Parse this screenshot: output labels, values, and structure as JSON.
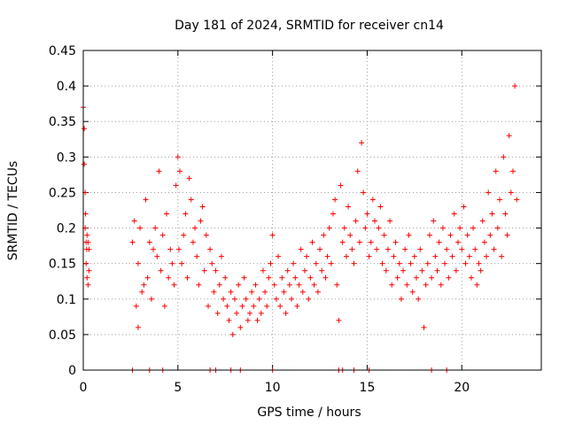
{
  "chart_data": {
    "type": "scatter",
    "title": "Day 181 of 2024, SRMTID for receiver cn14",
    "xlabel": "GPS time / hours",
    "ylabel": "SRMTID / TECUs",
    "xlim": [
      0,
      24.2
    ],
    "ylim": [
      0,
      0.45
    ],
    "xticks": [
      0,
      5,
      10,
      15,
      20
    ],
    "xtick_labels": [
      "0",
      "5",
      "10",
      "15",
      "20"
    ],
    "yticks": [
      0,
      0.05,
      0.1,
      0.15,
      0.2,
      0.25,
      0.3,
      0.35,
      0.4,
      0.45
    ],
    "ytick_labels": [
      "0",
      "0.05",
      "0.1",
      "0.15",
      "0.2",
      "0.25",
      "0.3",
      "0.35",
      "0.4",
      "0.45"
    ],
    "grid": true,
    "marker": "+",
    "color": "#ff0000",
    "series": [
      {
        "name": "SRMTID",
        "x": [
          0.0,
          0.05,
          0.05,
          0.1,
          0.1,
          0.12,
          0.15,
          0.15,
          0.18,
          0.2,
          0.2,
          0.25,
          0.25,
          0.3,
          0.3,
          2.6,
          2.7,
          2.8,
          2.9,
          2.9,
          3.0,
          3.1,
          3.2,
          3.3,
          3.4,
          3.5,
          3.6,
          3.7,
          3.8,
          3.9,
          4.0,
          4.1,
          4.2,
          4.3,
          4.4,
          4.5,
          4.6,
          4.7,
          4.8,
          4.9,
          5.0,
          5.05,
          5.1,
          5.2,
          5.3,
          5.4,
          5.5,
          5.6,
          5.7,
          5.8,
          5.9,
          6.0,
          6.1,
          6.2,
          6.3,
          6.4,
          6.5,
          6.6,
          6.7,
          6.8,
          6.9,
          7.0,
          7.1,
          7.2,
          7.3,
          7.4,
          7.5,
          7.6,
          7.7,
          7.8,
          7.9,
          8.0,
          8.1,
          8.2,
          8.3,
          8.4,
          8.5,
          8.6,
          8.7,
          8.8,
          8.9,
          9.0,
          9.1,
          9.2,
          9.3,
          9.4,
          9.5,
          9.6,
          9.7,
          9.8,
          9.9,
          10.0,
          10.1,
          10.2,
          10.3,
          10.4,
          10.5,
          10.6,
          10.7,
          10.8,
          10.9,
          11.0,
          11.1,
          11.2,
          11.3,
          11.4,
          11.5,
          11.6,
          11.7,
          11.8,
          11.9,
          12.0,
          12.1,
          12.2,
          12.3,
          12.4,
          12.5,
          12.6,
          12.7,
          12.8,
          12.9,
          13.0,
          13.1,
          13.2,
          13.3,
          13.4,
          13.5,
          13.6,
          13.7,
          13.8,
          13.9,
          14.0,
          14.1,
          14.2,
          14.3,
          14.4,
          14.5,
          14.6,
          14.7,
          14.8,
          14.9,
          15.0,
          15.1,
          15.2,
          15.3,
          15.4,
          15.5,
          15.6,
          15.7,
          15.8,
          15.9,
          16.0,
          16.1,
          16.2,
          16.3,
          16.4,
          16.5,
          16.6,
          16.7,
          16.8,
          16.9,
          17.0,
          17.1,
          17.2,
          17.3,
          17.4,
          17.5,
          17.6,
          17.7,
          17.8,
          17.9,
          18.0,
          18.1,
          18.2,
          18.3,
          18.4,
          18.5,
          18.6,
          18.7,
          18.8,
          18.9,
          19.0,
          19.1,
          19.2,
          19.3,
          19.4,
          19.5,
          19.6,
          19.7,
          19.8,
          19.9,
          20.0,
          20.1,
          20.2,
          20.3,
          20.4,
          20.5,
          20.6,
          20.7,
          20.8,
          20.9,
          21.0,
          21.1,
          21.2,
          21.3,
          21.4,
          21.5,
          21.6,
          21.7,
          21.8,
          21.9,
          22.0,
          22.1,
          22.2,
          22.3,
          22.4,
          22.5,
          22.6,
          22.7,
          22.8,
          22.9,
          2.6,
          3.5,
          4.2,
          6.7,
          7.0,
          7.8,
          8.3,
          10.0,
          13.5,
          13.7,
          14.3,
          15.1,
          18.4,
          19.2
        ],
        "y": [
          0.37,
          0.34,
          0.29,
          0.2,
          0.25,
          0.22,
          0.18,
          0.15,
          0.17,
          0.19,
          0.13,
          0.18,
          0.12,
          0.14,
          0.17,
          0.18,
          0.21,
          0.09,
          0.06,
          0.15,
          0.2,
          0.11,
          0.12,
          0.24,
          0.13,
          0.18,
          0.1,
          0.17,
          0.2,
          0.16,
          0.28,
          0.14,
          0.19,
          0.09,
          0.22,
          0.13,
          0.17,
          0.15,
          0.12,
          0.26,
          0.3,
          0.17,
          0.28,
          0.15,
          0.19,
          0.22,
          0.13,
          0.27,
          0.24,
          0.18,
          0.2,
          0.16,
          0.12,
          0.21,
          0.23,
          0.14,
          0.19,
          0.09,
          0.17,
          0.15,
          0.11,
          0.14,
          0.08,
          0.12,
          0.16,
          0.1,
          0.13,
          0.09,
          0.07,
          0.11,
          0.05,
          0.1,
          0.08,
          0.12,
          0.06,
          0.09,
          0.13,
          0.1,
          0.07,
          0.08,
          0.11,
          0.09,
          0.12,
          0.07,
          0.1,
          0.08,
          0.14,
          0.11,
          0.09,
          0.13,
          0.15,
          0.19,
          0.12,
          0.1,
          0.16,
          0.09,
          0.13,
          0.11,
          0.08,
          0.14,
          0.12,
          0.1,
          0.15,
          0.13,
          0.09,
          0.12,
          0.17,
          0.11,
          0.14,
          0.16,
          0.1,
          0.13,
          0.18,
          0.12,
          0.15,
          0.11,
          0.17,
          0.14,
          0.19,
          0.13,
          0.16,
          0.2,
          0.15,
          0.22,
          0.24,
          0.12,
          0.07,
          0.26,
          0.18,
          0.2,
          0.16,
          0.23,
          0.19,
          0.17,
          0.15,
          0.21,
          0.28,
          0.18,
          0.32,
          0.25,
          0.2,
          0.22,
          0.16,
          0.18,
          0.24,
          0.21,
          0.17,
          0.2,
          0.23,
          0.15,
          0.19,
          0.14,
          0.17,
          0.21,
          0.12,
          0.16,
          0.18,
          0.13,
          0.15,
          0.1,
          0.14,
          0.17,
          0.12,
          0.19,
          0.15,
          0.11,
          0.16,
          0.13,
          0.1,
          0.17,
          0.14,
          0.06,
          0.12,
          0.15,
          0.19,
          0.13,
          0.21,
          0.16,
          0.14,
          0.18,
          0.12,
          0.2,
          0.15,
          0.17,
          0.13,
          0.19,
          0.16,
          0.22,
          0.14,
          0.18,
          0.2,
          0.17,
          0.23,
          0.15,
          0.19,
          0.16,
          0.13,
          0.2,
          0.17,
          0.12,
          0.15,
          0.14,
          0.21,
          0.18,
          0.16,
          0.25,
          0.19,
          0.22,
          0.17,
          0.28,
          0.2,
          0.24,
          0.16,
          0.3,
          0.22,
          0.19,
          0.33,
          0.25,
          0.28,
          0.4,
          0.24,
          0.0,
          0.0,
          0.0,
          0.0,
          0.0,
          0.0,
          0.0,
          0.0,
          0.0,
          0.0,
          0.0,
          0.0,
          0.0,
          0.0
        ]
      }
    ]
  }
}
